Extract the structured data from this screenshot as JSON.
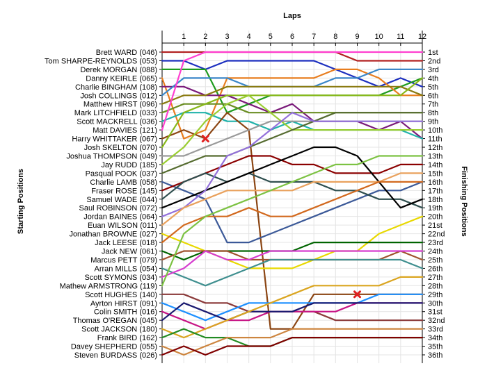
{
  "chart_data": {
    "type": "line",
    "title": "Laps",
    "xlabel": "Laps",
    "ylabel_left": "Starting Positions",
    "ylabel_right": "Finishing Positions",
    "x": [
      0,
      1,
      2,
      3,
      4,
      5,
      6,
      7,
      8,
      9,
      10,
      11,
      12
    ],
    "x_tick_labels": [
      "1",
      "2",
      "3",
      "4",
      "5",
      "6",
      "7",
      "8",
      "9",
      "10",
      "11",
      "12"
    ],
    "y_range": [
      1,
      36
    ],
    "grid": true,
    "drivers": [
      "Brett WARD (046)",
      "Tom SHARPE-REYNOLDS (053)",
      "Derek MORGAN (088)",
      "Danny KEIRLE (065)",
      "Charlie BINGHAM (108)",
      "Josh COLLINGS (012)",
      "Matthew  HIRST (096)",
      "Mark LITCHFIELD (033)",
      "Scott MACKRELL (036)",
      "Matt DAVIES (121)",
      "Harry WHITTAKER (067)",
      "Josh SKELTON (070)",
      "Joshua THOMPSON (049)",
      "Jay RUDD (185)",
      "Pasqual POOK (037)",
      "Charlie LAMB (058)",
      "Fraser ROSE (145)",
      "Samuel WADE (044)",
      "Saul ROBINSON  (072)",
      "Jordan BAINES (064)",
      "Euan WILSON (011)",
      "Jonathan BROWNE (027)",
      "Jack LEESE (018)",
      "Jack NEW (061)",
      "Marcus PETT (079)",
      "Arran MILLS (054)",
      "Scott SYMONS (034)",
      "Mathew ARMSTRONG (119)",
      "Scott HUGHES (140)",
      "Ayrton HIRST (091)",
      "Colin SMITH (016)",
      "Thomas O'REGAN (045)",
      "Scott JACKSON (180)",
      "Frank BIRD (162)",
      "Davey SHEPHERD (055)",
      "Steven BURDASS (026)"
    ],
    "finishing_labels": [
      "1st",
      "2nd",
      "3rd",
      "4th",
      "5th",
      "6th",
      "7th",
      "8th",
      "9th",
      "10th",
      "11th",
      "12th",
      "13th",
      "14th",
      "15th",
      "16th",
      "17th",
      "18th",
      "19th",
      "20th",
      "21st",
      "22nd",
      "23rd",
      "24th",
      "25th",
      "26th",
      "27th",
      "28th",
      "29th",
      "30th",
      "31st",
      "32nd",
      "33rd",
      "34th",
      "35th",
      "36th"
    ],
    "series": [
      {
        "color": "#b22222",
        "values": [
          1,
          1,
          1,
          1,
          1,
          1,
          1,
          1,
          1,
          2,
          2,
          2,
          2
        ]
      },
      {
        "color": "#1c2fbf",
        "values": [
          2,
          2,
          3,
          2,
          2,
          2,
          2,
          2,
          3,
          4,
          5,
          4,
          5
        ]
      },
      {
        "color": "#1e9b1e",
        "values": [
          3,
          3,
          3,
          8,
          7,
          6,
          6,
          6,
          6,
          6,
          6,
          5,
          4
        ]
      },
      {
        "color": "#e87d1e",
        "values": [
          4,
          11,
          10,
          4,
          4,
          4,
          4,
          4,
          3,
          3,
          4,
          6,
          6
        ]
      },
      {
        "color": "#7a1a7a",
        "values": [
          5,
          5,
          6,
          6,
          7,
          8,
          7,
          9,
          9,
          9,
          10,
          9,
          11
        ]
      },
      {
        "color": "#3a86c8",
        "values": [
          6,
          4,
          4,
          4,
          5,
          5,
          5,
          5,
          4,
          4,
          3,
          3,
          3
        ]
      },
      {
        "color": "#8a7a10",
        "values": [
          7,
          6,
          6,
          5,
          5,
          5,
          5,
          5,
          5,
          5,
          5,
          5,
          6
        ]
      },
      {
        "color": "#6b8e23",
        "values": [
          8,
          7,
          7,
          7,
          8,
          8,
          8,
          8,
          8,
          8,
          8,
          8,
          8
        ]
      },
      {
        "color": "#20b2aa",
        "values": [
          9,
          8,
          8,
          9,
          9,
          10,
          9,
          10,
          10,
          10,
          10,
          10,
          11
        ]
      },
      {
        "color": "#ff3fd0",
        "values": [
          10,
          2,
          1,
          1,
          1,
          1,
          1,
          1,
          1,
          1,
          1,
          1,
          1
        ]
      },
      {
        "color": "#8b4513",
        "values": [
          11,
          10,
          11,
          8,
          10,
          33,
          33,
          29,
          29,
          29,
          29,
          29,
          29
        ]
      },
      {
        "color": "#87b81a",
        "values": [
          12,
          8,
          7,
          6,
          6,
          6,
          6,
          6,
          6,
          6,
          6,
          6,
          4
        ]
      },
      {
        "color": "#999999",
        "values": [
          13,
          13,
          12,
          11,
          10,
          9,
          9,
          9,
          9,
          9,
          9,
          9,
          9
        ]
      },
      {
        "color": "#9acd32",
        "values": [
          14,
          12,
          9,
          7,
          6,
          8,
          10,
          10,
          10,
          10,
          10,
          10,
          10
        ]
      },
      {
        "color": "#556b2f",
        "values": [
          15,
          14,
          13,
          13,
          12,
          11,
          10,
          9,
          8,
          8,
          8,
          8,
          8
        ]
      },
      {
        "color": "#3b5998",
        "values": [
          16,
          17,
          18,
          23,
          23,
          22,
          21,
          20,
          19,
          18,
          17,
          17,
          16
        ]
      },
      {
        "color": "#8b0000",
        "values": [
          17,
          16,
          15,
          14,
          13,
          13,
          14,
          14,
          15,
          15,
          15,
          14,
          14
        ]
      },
      {
        "color": "#2f4f4f",
        "values": [
          18,
          16,
          15,
          16,
          15,
          16,
          16,
          16,
          17,
          17,
          18,
          18,
          19
        ]
      },
      {
        "color": "#000000",
        "values": [
          19,
          18,
          17,
          16,
          15,
          14,
          13,
          12,
          12,
          13,
          16,
          19,
          18
        ]
      },
      {
        "color": "#9370db",
        "values": [
          20,
          19,
          17,
          13,
          12,
          10,
          8,
          9,
          9,
          9,
          9,
          9,
          9
        ]
      },
      {
        "color": "#e9a15c",
        "values": [
          21,
          19,
          18,
          17,
          17,
          17,
          17,
          16,
          16,
          16,
          16,
          15,
          15
        ]
      },
      {
        "color": "#e8d800",
        "values": [
          22,
          23,
          24,
          25,
          26,
          26,
          26,
          25,
          24,
          24,
          22,
          21,
          20
        ]
      },
      {
        "color": "#d2691e",
        "values": [
          23,
          21,
          20,
          20,
          19,
          20,
          20,
          19,
          18,
          17,
          16,
          16,
          16
        ]
      },
      {
        "color": "#006400",
        "values": [
          24,
          25,
          24,
          24,
          24,
          24,
          24,
          23,
          23,
          23,
          23,
          23,
          23
        ]
      },
      {
        "color": "#a0522d",
        "values": [
          25,
          24,
          24,
          24,
          25,
          25,
          25,
          25,
          25,
          25,
          25,
          24,
          25
        ]
      },
      {
        "color": "#3f8f8f",
        "values": [
          26,
          27,
          28,
          27,
          26,
          25,
          25,
          25,
          25,
          25,
          25,
          25,
          26
        ]
      },
      {
        "color": "#d63ccf",
        "values": [
          27,
          26,
          24,
          25,
          25,
          24,
          24,
          24,
          24,
          24,
          24,
          24,
          24
        ]
      },
      {
        "color": "#7cc242",
        "values": [
          28,
          22,
          20,
          19,
          18,
          17,
          16,
          15,
          14,
          14,
          13,
          13,
          13
        ]
      },
      {
        "color": "#8b3a3a",
        "values": [
          29,
          29,
          30,
          30,
          31,
          31,
          31,
          31,
          32,
          32,
          32,
          32,
          32
        ]
      },
      {
        "color": "#1e90ff",
        "values": [
          30,
          31,
          32,
          31,
          30,
          30,
          30,
          30,
          30,
          30,
          29,
          29,
          29
        ]
      },
      {
        "color": "#c71585",
        "values": [
          31,
          32,
          33,
          32,
          32,
          31,
          31,
          31,
          31,
          30,
          30,
          30,
          30
        ]
      },
      {
        "color": "#191970",
        "values": [
          32,
          30,
          31,
          32,
          31,
          31,
          31,
          30,
          30,
          30,
          30,
          30,
          30
        ]
      },
      {
        "color": "#daa520",
        "values": [
          33,
          34,
          33,
          32,
          31,
          30,
          29,
          28,
          28,
          28,
          28,
          27,
          27
        ]
      },
      {
        "color": "#228b22",
        "values": [
          34,
          33,
          34,
          34,
          35,
          35,
          34,
          34,
          34,
          34,
          34,
          34,
          34
        ]
      },
      {
        "color": "#cd853f",
        "values": [
          35,
          36,
          35,
          34,
          34,
          34,
          33,
          33,
          33,
          33,
          33,
          33,
          33
        ]
      },
      {
        "color": "#800000",
        "values": [
          36,
          35,
          36,
          35,
          35,
          35,
          34,
          34,
          34,
          34,
          34,
          34,
          34
        ]
      }
    ],
    "markers": [
      {
        "lap": 2,
        "position": 11,
        "color": "#e02020",
        "icon": "x-marker-icon"
      },
      {
        "lap": 9,
        "position": 29,
        "color": "#e02020",
        "icon": "x-marker-icon"
      }
    ]
  }
}
